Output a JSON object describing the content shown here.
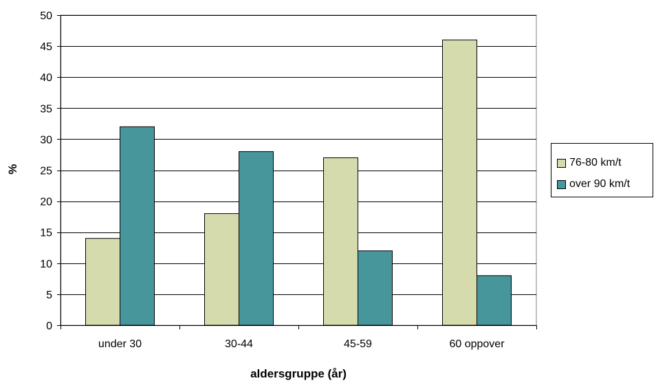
{
  "chart_data": {
    "type": "bar",
    "title": "",
    "xlabel": "aldersgruppe (år)",
    "ylabel": "%",
    "categories": [
      "under 30",
      "30-44",
      "45-59",
      "60 oppover"
    ],
    "series": [
      {
        "name": "76-80 km/t",
        "values": [
          14,
          18,
          27,
          46
        ],
        "color": "#d6dbae"
      },
      {
        "name": "over 90 km/t",
        "values": [
          32,
          28,
          12,
          8
        ],
        "color": "#47969c"
      }
    ],
    "ylim": [
      0,
      50
    ],
    "yticks": [
      0,
      5,
      10,
      15,
      20,
      25,
      30,
      35,
      40,
      45,
      50
    ],
    "grid": true,
    "legend_position": "right"
  }
}
